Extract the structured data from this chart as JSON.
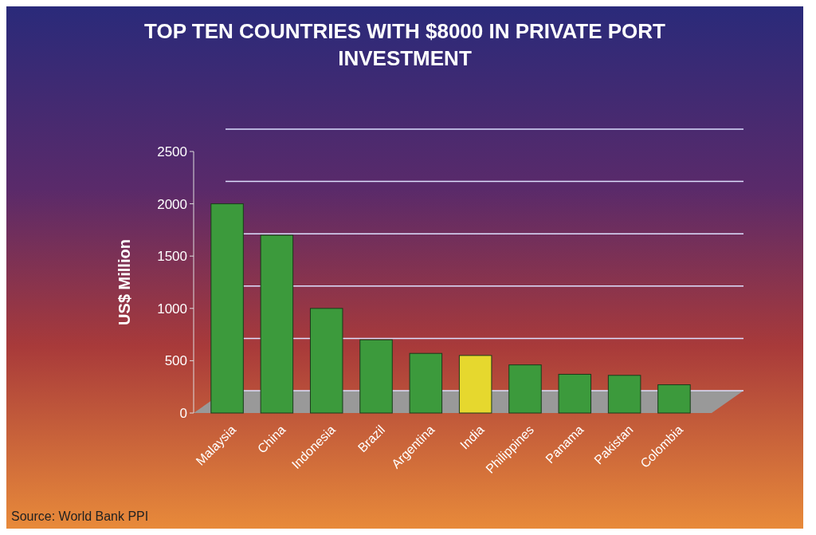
{
  "chart_data": {
    "type": "bar",
    "title": "TOP TEN COUNTRIES WITH $8000 IN PRIVATE PORT INVESTMENT",
    "ylabel": "US$ Million",
    "categories": [
      "Malaysia",
      "China",
      "Indonesia",
      "Brazil",
      "Argentina",
      "India",
      "Philippines",
      "Panama",
      "Pakistan",
      "Colombia"
    ],
    "values": [
      2000,
      1700,
      1000,
      700,
      570,
      550,
      460,
      370,
      360,
      270
    ],
    "colors": [
      "#3c9a3c",
      "#3c9a3c",
      "#3c9a3c",
      "#3c9a3c",
      "#3c9a3c",
      "#e6d82e",
      "#3c9a3c",
      "#3c9a3c",
      "#3c9a3c",
      "#3c9a3c"
    ],
    "ylim": [
      0,
      2500
    ],
    "yticks": [
      0,
      500,
      1000,
      1500,
      2000,
      2500
    ],
    "grid": "y",
    "annotations": [
      "Source: World Bank PPI"
    ]
  }
}
